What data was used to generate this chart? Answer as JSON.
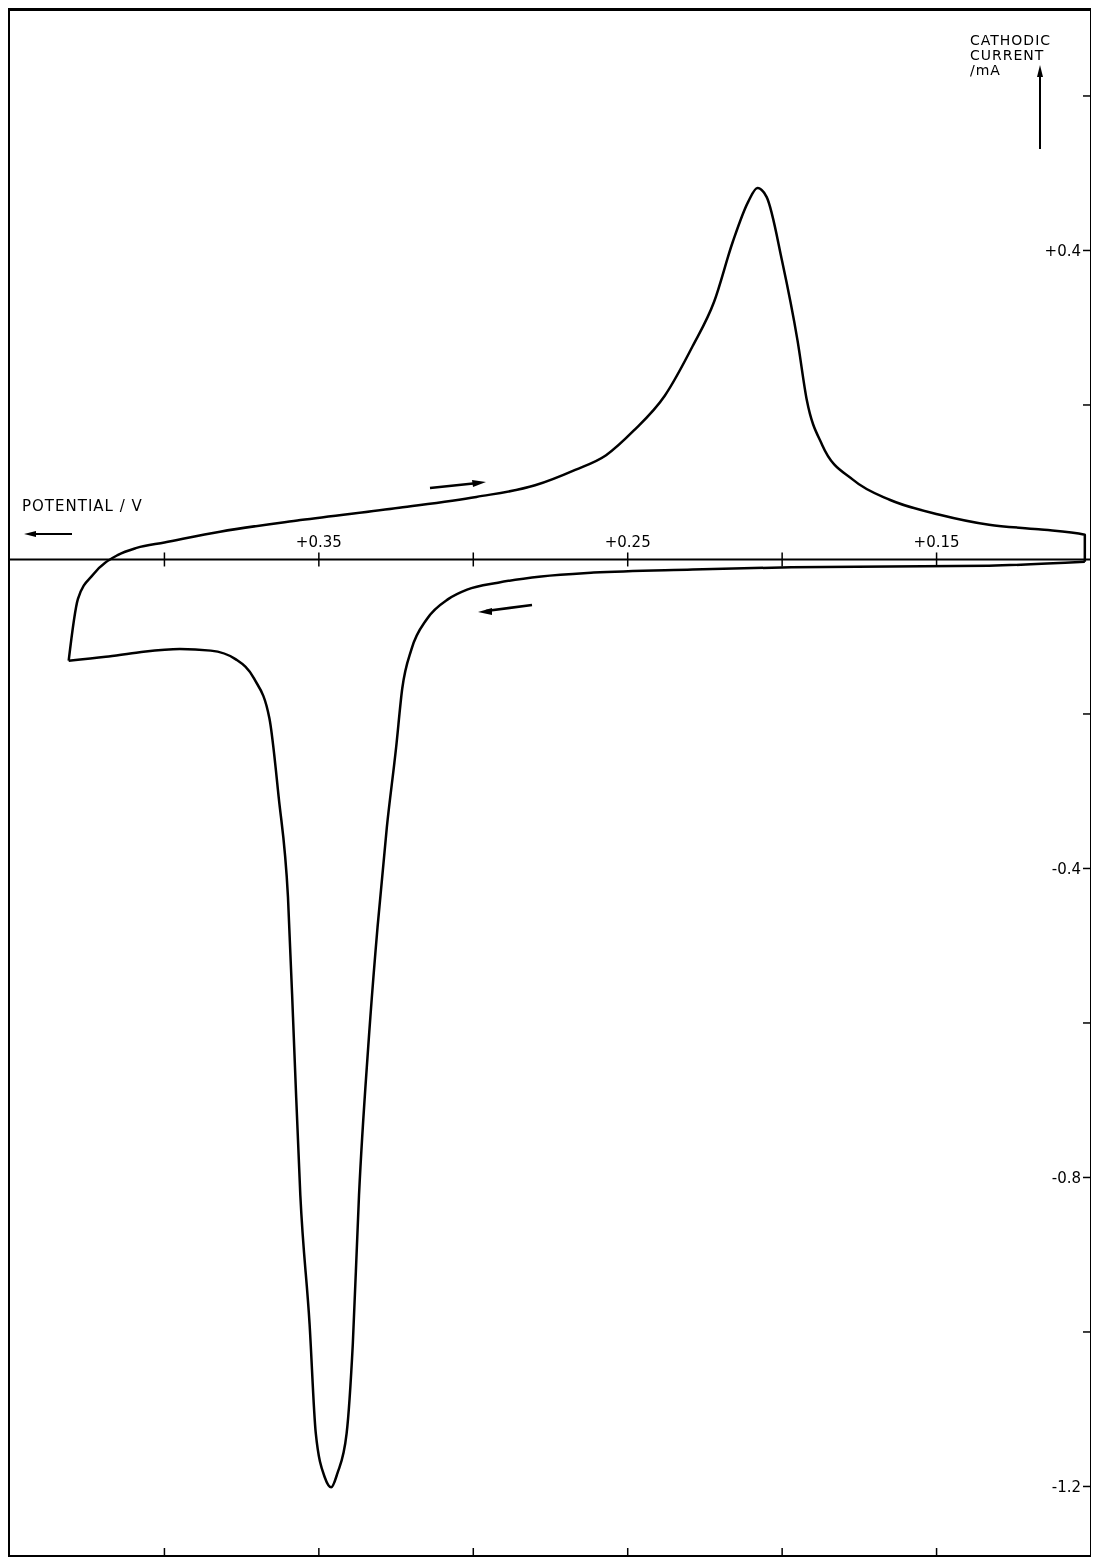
{
  "chart_data": {
    "type": "line",
    "xlabel": "POTENTIAL / V",
    "ylabel": "CATHODIC CURRENT /mA",
    "xlim": [
      0.45,
      0.1
    ],
    "xticks": [
      {
        "value": 0.4,
        "label": null
      },
      {
        "value": 0.35,
        "label": "+0.35"
      },
      {
        "value": 0.3,
        "label": null
      },
      {
        "value": 0.25,
        "label": "+0.25"
      },
      {
        "value": 0.2,
        "label": null
      },
      {
        "value": 0.15,
        "label": "+0.15"
      }
    ],
    "ylim": [
      -1.29,
      0.71
    ],
    "yticks": [
      {
        "value": 0.6,
        "label": null
      },
      {
        "value": 0.4,
        "label": "+0.4"
      },
      {
        "value": 0.2,
        "label": null
      },
      {
        "value": -0.2,
        "label": null
      },
      {
        "value": -0.4,
        "label": "-0.4"
      },
      {
        "value": -0.6,
        "label": null
      },
      {
        "value": -0.8,
        "label": "-0.8"
      },
      {
        "value": -1.0,
        "label": null
      },
      {
        "value": -1.2,
        "label": "-1.2"
      }
    ],
    "grid": false,
    "legend": false,
    "marker": "none",
    "line_style": "solid",
    "series": [
      {
        "color": "#000000",
        "x": [
          0.431,
          0.428,
          0.423,
          0.415,
          0.409,
          0.4,
          0.382,
          0.356,
          0.324,
          0.299,
          0.28,
          0.267,
          0.257,
          0.248,
          0.238,
          0.229,
          0.222,
          0.216,
          0.211,
          0.208,
          0.205,
          0.2,
          0.195,
          0.192,
          0.187,
          0.177,
          0.165,
          0.149,
          0.133,
          0.117,
          0.102,
          0.102
        ],
        "values": [
          -0.131,
          -0.051,
          -0.019,
          0.006,
          0.015,
          0.022,
          0.036,
          0.051,
          0.067,
          0.081,
          0.096,
          0.116,
          0.135,
          0.167,
          0.212,
          0.276,
          0.334,
          0.411,
          0.463,
          0.481,
          0.469,
          0.386,
          0.283,
          0.206,
          0.148,
          0.103,
          0.077,
          0.058,
          0.045,
          0.039,
          0.032,
          -0.003
        ]
      },
      {
        "color": "#000000",
        "x": [
          0.102,
          0.133,
          0.197,
          0.229,
          0.261,
          0.278,
          0.292,
          0.302,
          0.308,
          0.315,
          0.32,
          0.323,
          0.325,
          0.328,
          0.331,
          0.334,
          0.337,
          0.339,
          0.341,
          0.344,
          0.346,
          0.348,
          0.351,
          0.353,
          0.356,
          0.358,
          0.36,
          0.363,
          0.366,
          0.371,
          0.377,
          0.385,
          0.395,
          0.408,
          0.419,
          0.431
        ],
        "values": [
          -0.003,
          -0.008,
          -0.01,
          -0.013,
          -0.017,
          -0.022,
          -0.03,
          -0.039,
          -0.051,
          -0.077,
          -0.116,
          -0.167,
          -0.244,
          -0.347,
          -0.476,
          -0.63,
          -0.823,
          -1.015,
          -1.131,
          -1.183,
          -1.201,
          -1.189,
          -1.131,
          -0.99,
          -0.823,
          -0.63,
          -0.437,
          -0.308,
          -0.206,
          -0.154,
          -0.129,
          -0.118,
          -0.116,
          -0.12,
          -0.126,
          -0.131
        ]
      }
    ]
  }
}
